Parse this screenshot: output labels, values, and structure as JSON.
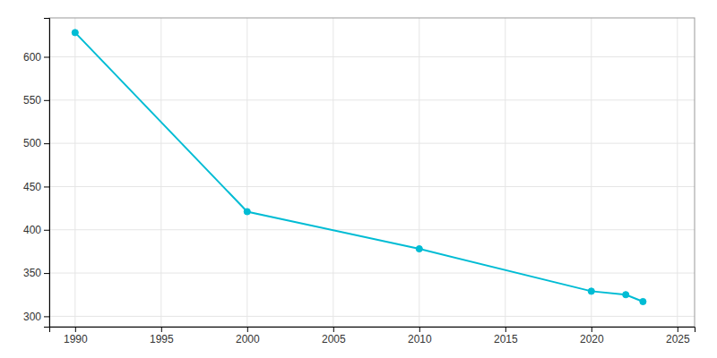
{
  "chart_data": {
    "type": "line",
    "x": [
      1990,
      2000,
      2010,
      2020,
      2022,
      2023
    ],
    "values": [
      628,
      421,
      378,
      329,
      325,
      317
    ],
    "color": "#00bcd4",
    "marker": "circle",
    "xlim": [
      1988.5,
      2026
    ],
    "ylim": [
      288,
      645
    ],
    "xticks": [
      1990,
      1995,
      2000,
      2005,
      2010,
      2015,
      2020,
      2025
    ],
    "yticks": [
      300,
      350,
      400,
      450,
      500,
      550,
      600
    ],
    "grid": true
  }
}
